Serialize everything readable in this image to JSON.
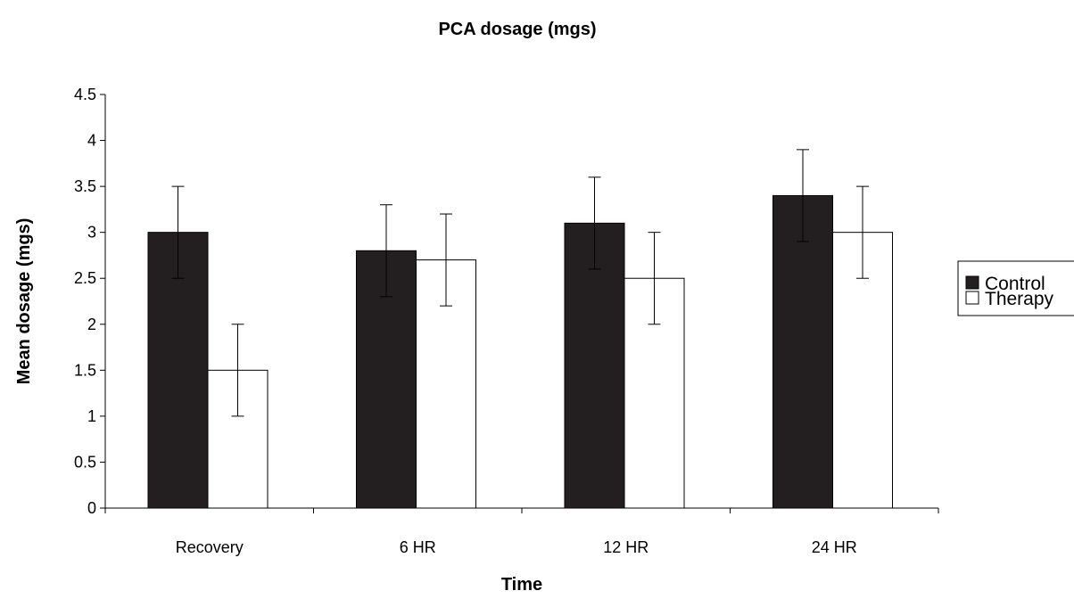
{
  "chart_data": {
    "type": "bar",
    "title": "PCA dosage (mgs)",
    "xlabel": "Time",
    "ylabel": "Mean dosage (mgs)",
    "categories": [
      "Recovery",
      "6 HR",
      "12 HR",
      "24 HR"
    ],
    "ylim": [
      0,
      4.5
    ],
    "yticks": [
      "0",
      "0.5",
      "1",
      "1.5",
      "2",
      "2.5",
      "3",
      "3.5",
      "4",
      "4.5"
    ],
    "grid": false,
    "legend_position": "right",
    "series": [
      {
        "name": "Control",
        "color": "#231f20",
        "values": [
          3.0,
          2.8,
          3.1,
          3.4
        ],
        "error": [
          0.5,
          0.5,
          0.5,
          0.5
        ]
      },
      {
        "name": "Therapy",
        "color": "#ffffff",
        "values": [
          1.5,
          2.7,
          2.5,
          3.0
        ],
        "error": [
          0.5,
          0.5,
          0.5,
          0.5
        ]
      }
    ]
  }
}
